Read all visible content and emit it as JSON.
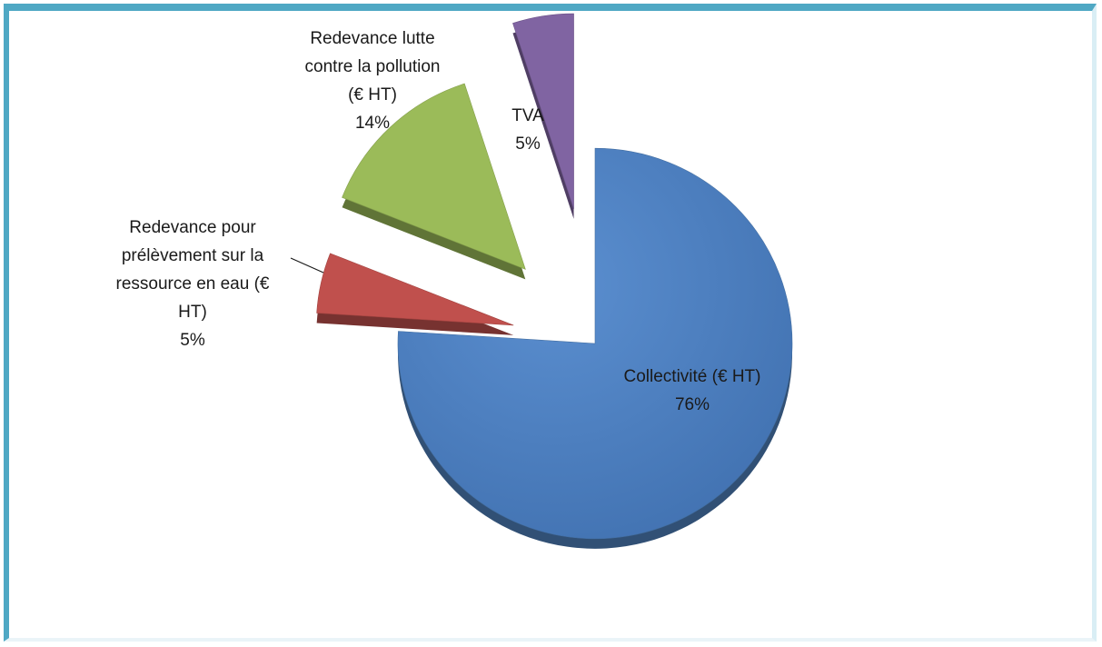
{
  "chart_data": {
    "type": "pie",
    "title": "",
    "slices": [
      {
        "label": "Collectivité (€ HT)",
        "value": 76,
        "value_label": "76%",
        "color": "#4f81bd"
      },
      {
        "label": "Redevance pour prélèvement sur la ressource en eau (€ HT)",
        "value": 5,
        "value_label": "5%",
        "color": "#c0504d"
      },
      {
        "label": "Redevance lutte contre la pollution (€ HT)",
        "value": 14,
        "value_label": "14%",
        "color": "#9bbb59"
      },
      {
        "label": "TVA",
        "value": 5,
        "value_label": "5%",
        "color": "#8064a2"
      }
    ],
    "legend": "none",
    "style": "3d-exploded"
  }
}
